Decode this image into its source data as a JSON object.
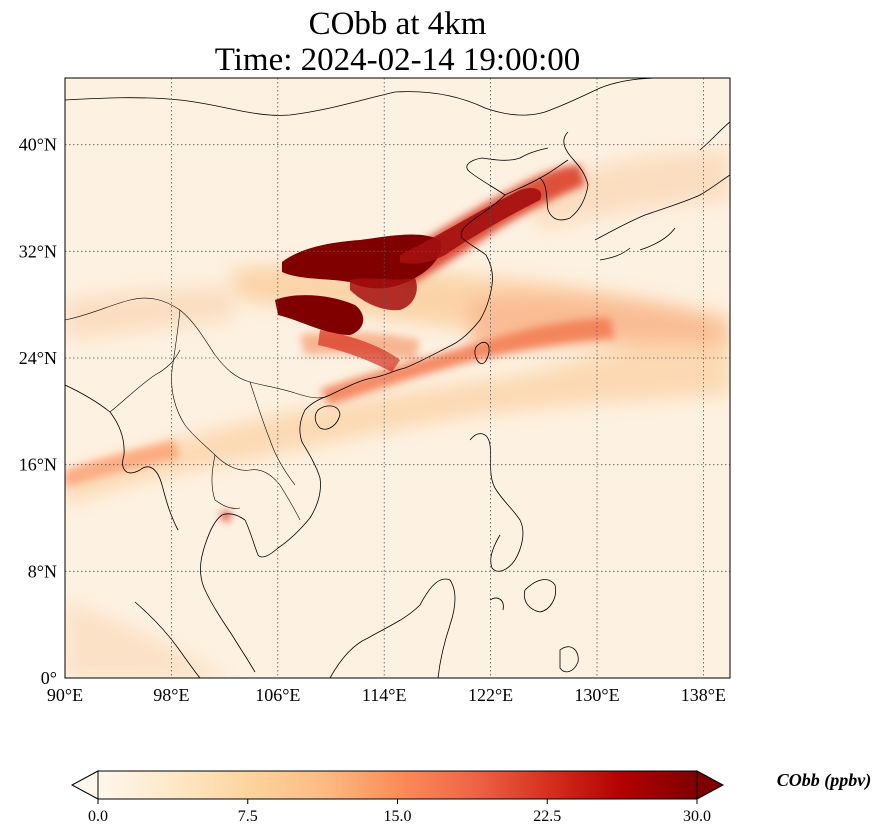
{
  "title": {
    "line1": "CObb at 4km",
    "line2": "Time: 2024-02-14 19:00:00"
  },
  "axes": {
    "lon_ticks": [
      "90°E",
      "98°E",
      "106°E",
      "114°E",
      "122°E",
      "130°E",
      "138°E"
    ],
    "lat_ticks": [
      "0°",
      "8°N",
      "16°N",
      "24°N",
      "32°N",
      "40°N"
    ],
    "lon_range": [
      90,
      140
    ],
    "lat_range": [
      0,
      45
    ],
    "grid": "dotted"
  },
  "colorbar": {
    "label": "CObb (ppbv)",
    "ticks": [
      "0.0",
      "7.5",
      "15.0",
      "22.5",
      "30.0"
    ],
    "range": [
      0,
      30
    ],
    "extend": "both",
    "colormap": "OrRd",
    "colors": [
      "#fff7ec",
      "#fee8c8",
      "#fdd49e",
      "#fdbb84",
      "#fc8d59",
      "#ef6548",
      "#d7301f",
      "#b30000",
      "#7f0000"
    ]
  },
  "plumes": [
    {
      "name": "central-china-core-north",
      "lon": [
        108,
        117
      ],
      "lat": [
        31,
        33
      ],
      "value": 30
    },
    {
      "name": "central-china-core-south",
      "lon": [
        106,
        112
      ],
      "lat": [
        26.5,
        28.5
      ],
      "value": 30
    },
    {
      "name": "yellow-sea-band",
      "lon": [
        113,
        127
      ],
      "lat": [
        32,
        38
      ],
      "value": 22
    },
    {
      "name": "south-china-coast-band",
      "lon": [
        110,
        125
      ],
      "lat": [
        21,
        25
      ],
      "value": 15
    },
    {
      "name": "east-pacific-band",
      "lon": [
        122,
        139
      ],
      "lat": [
        25,
        31
      ],
      "value": 10
    },
    {
      "name": "indochina-band",
      "lon": [
        90,
        110
      ],
      "lat": [
        15,
        20
      ],
      "value": 8
    },
    {
      "name": "cambodia-hotspot",
      "lon": [
        102,
        103
      ],
      "lat": [
        12,
        13
      ],
      "value": 18
    }
  ]
}
